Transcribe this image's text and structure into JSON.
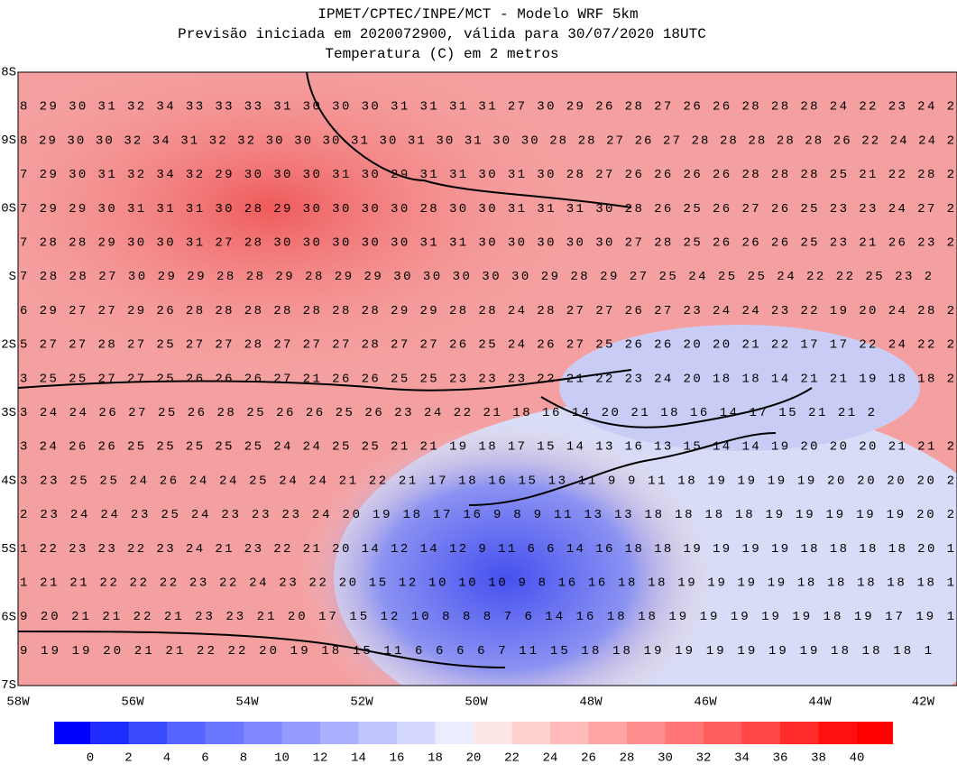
{
  "header": {
    "title": [
      "IPMET/CPTEC/INPE/MCT - Modelo WRF 5km",
      "Previsão iniciada em 2020072900, válida para 30/07/2020 18UTC",
      "Temperatura (C) em 2 metros"
    ]
  },
  "map": {
    "rows": [
      "8 29 30 31 32 34 33 33 33 31 30 30 30 31 31 31 31 27 30 29 26 28 27 26 26 28 28 28 24 22 23 24 2",
      "8 29 30 30 32 34 31 32 32 30 30 30 31 30 31 30 31 30 30 28 28 27 26 27 28 28 28 28 28 26 22 24 24 2",
      "7 29 30 31 32 34 32 29 30 30 30 31 30 29 31 31 30 31 30 28 27 26 26 26 26 28 28 28 25 21 22 28 2",
      "7 29 29 30 31 31 31 30 28 29 30 30 30 30 28 30 30 31 31 31 30 28 26 25 26 27 26 25 23 23 24 27 2",
      "7 28 28 29 30 30 31 27 28 30 30 30 30 30 31 31 30 30 30 30 30 27 28 25 26 26 26 25 23 21 26 23 2",
      "7 28 28 27 30 29 29 28 28 29 28 29 29 30 30 30 30 30 29 28 29 27 25 24 25 25 24 22 22 25 23 2",
      "6 29 27 27 29 26 28 28 28 28 28 28 28 29 29 28 28 24 28 27 27 26 27 23 24 24 23 22 19 20 24 28 2",
      "5 27 27 28 27 25 27 27 28 27 27 27 28 27 27 26 25 24 26 27 25 26 26 20 20 21 22 17 17 22 24 22 2",
      "3 25 25 27 27 25 26 26 26 27 21 26 26 25 25 23 23 23 22 21 22 23 24 20 18 18 14 21 21 19 18 18 2",
      "3 24 24 26 27 25 26 28 25 26 26 25 26 23 24 22 21 18 16 14 20 21 18 16 14 17 15 21 21 2",
      "3 24 26 26 25 25 25 25 25 24 24 25 25 21 21 19 18 17 15 14 13 16 13 15 14 14 19 20 20 20 21 21 2",
      "3 23 25 25 24 26 24 24 25 24 24 21 22 21 17 18 16 15 13 11 9 9 11 18 19 19 19 19 20 20 20 20 2",
      "2 23 24 24 23 25 24 23 23 23 24 20 19 18 17 16 9 8 9 11 13 13 18 18 18 18 19 19 19 19 19 20 2",
      "1 22 23 23 22 23 24 21 23 22 21 20 14 12 14 12 9 11 6 6 14 16 18 18 19 19 19 19 18 18 18 18 20 1",
      "1 21 21 22 22 22 23 22 24 23 22 20 15 12 10 10 10 9 8 16 16 18 18 19 19 19 19 18 18 18 18 18 1",
      "9 20 21 21 22 21 23 23 21 20 17 15 12 10 8 8 8 7 6 14 16 18 18 19 19 19 19 19 18 19 17 19 1",
      "9 19 19 20 21 21 22 22 20 19 18 15 11 6 6 6 6 7 11 15 18 18 19 19 19 19 19 19 18 18 18 1"
    ],
    "lat_labels": [
      "8S",
      "9S",
      "0S",
      "S",
      "2S",
      "3S",
      "4S",
      "5S",
      "6S",
      "7S"
    ],
    "lon_labels": [
      "58W",
      "56W",
      "54W",
      "52W",
      "50W",
      "48W",
      "46W",
      "44W",
      "42W"
    ]
  },
  "colorbar": {
    "labels": [
      "0",
      "2",
      "4",
      "6",
      "8",
      "10",
      "12",
      "14",
      "16",
      "18",
      "20",
      "22",
      "24",
      "26",
      "28",
      "30",
      "32",
      "34",
      "36",
      "38",
      "40"
    ],
    "colors": [
      "#0000ff",
      "#1e2cff",
      "#3a4bff",
      "#5563ff",
      "#6b77ff",
      "#8088ff",
      "#959cff",
      "#aab0ff",
      "#c0c4ff",
      "#d6d9ff",
      "#ebecff",
      "#ffe6e6",
      "#ffd0d0",
      "#ffbaba",
      "#ffa3a3",
      "#ff8c8c",
      "#ff7575",
      "#ff5e5e",
      "#ff4545",
      "#ff2b2b",
      "#ff1010",
      "#ff0000"
    ]
  }
}
